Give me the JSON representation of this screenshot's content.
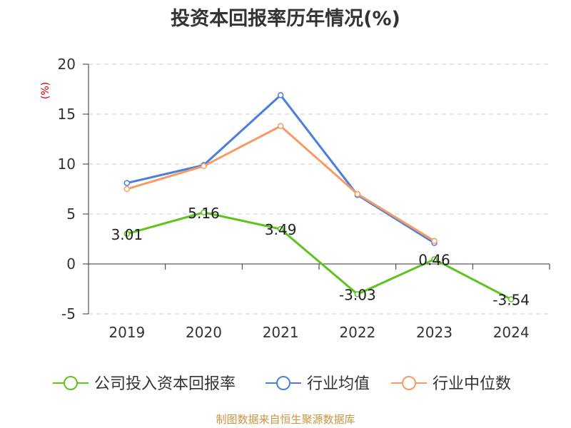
{
  "chart_data": {
    "type": "line",
    "title": "投资本回报率历年情况(%)",
    "ylabel": "(%)",
    "categories": [
      "2019",
      "2020",
      "2021",
      "2022",
      "2023",
      "2024"
    ],
    "ylim": [
      -5,
      20
    ],
    "yticks": [
      "-5",
      "0",
      "5",
      "10",
      "15",
      "20"
    ],
    "grid": true,
    "legend_position": "bottom",
    "series": [
      {
        "name": "公司投入资本回报率",
        "color": "#5cc41f",
        "values": [
          3.01,
          5.16,
          3.49,
          -3.03,
          0.46,
          -3.54
        ],
        "labels": [
          "3.01",
          "5.16",
          "3.49",
          "-3.03",
          "0.46",
          "-3.54"
        ]
      },
      {
        "name": "行业均值",
        "color": "#4a7fdc",
        "values": [
          8.1,
          9.9,
          16.9,
          6.9,
          2.1,
          null
        ]
      },
      {
        "name": "行业中位数",
        "color": "#f79a64",
        "values": [
          7.5,
          9.8,
          13.8,
          7.0,
          2.3,
          null
        ]
      }
    ]
  },
  "source": "制图数据来自恒生聚源数据库"
}
